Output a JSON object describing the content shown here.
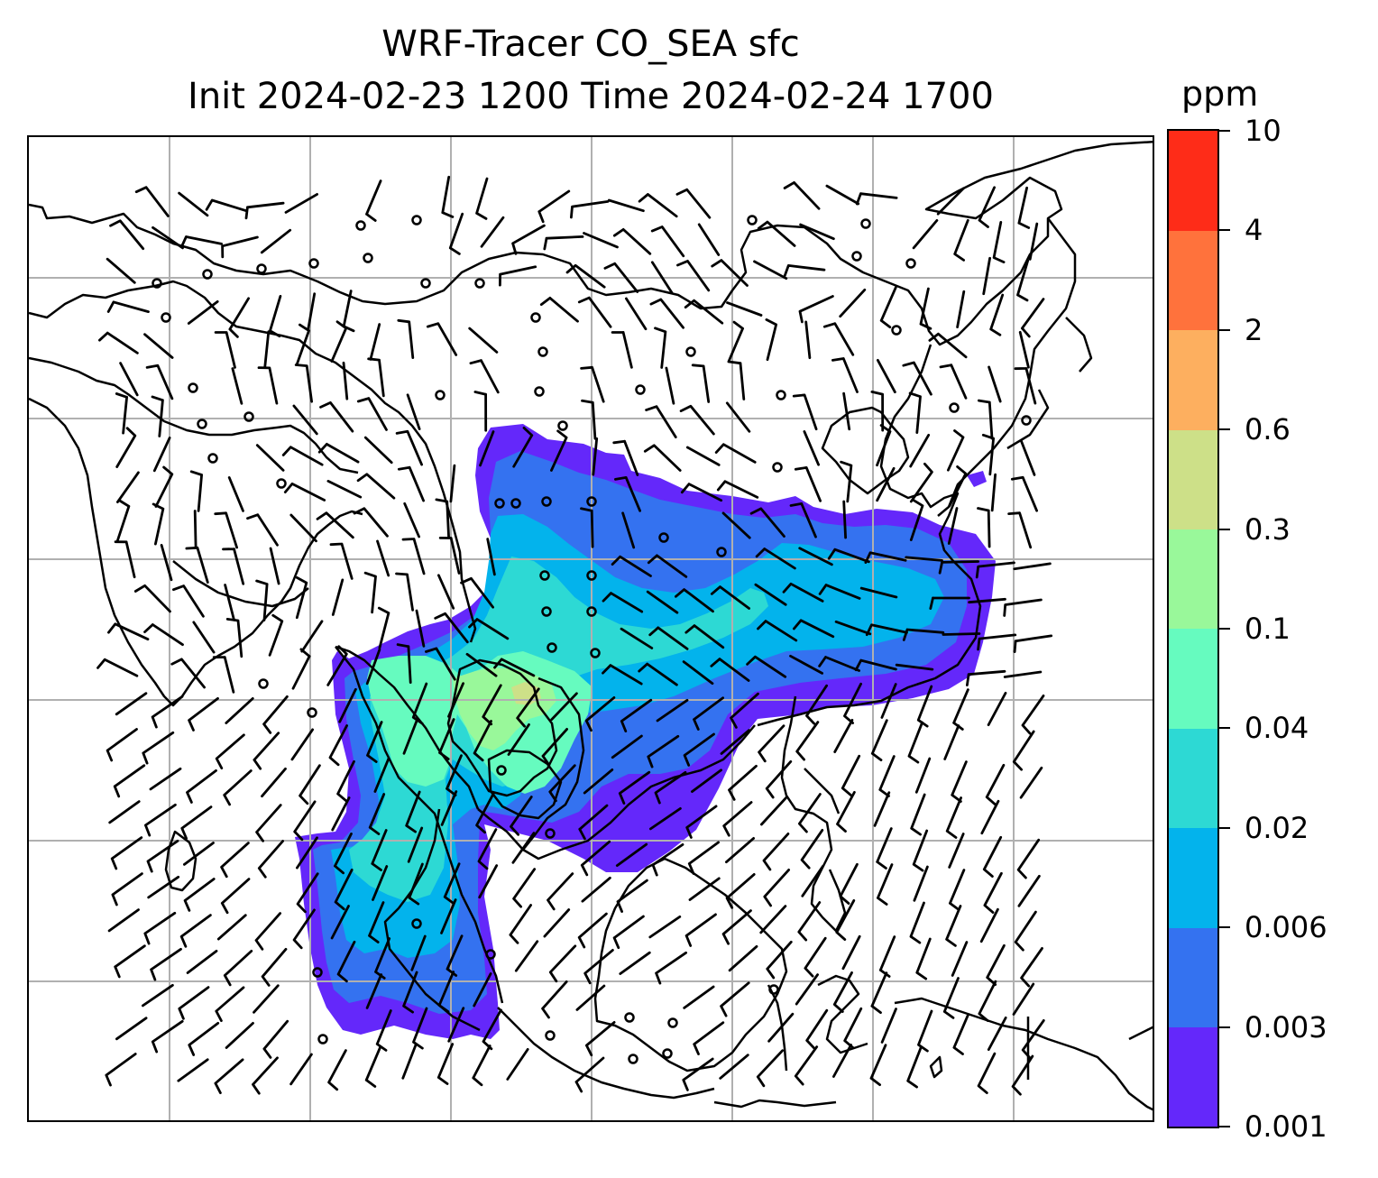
{
  "title": {
    "line1": "WRF-Tracer CO_SEA sfc",
    "line2": "Init 2024-02-23 1200 Time 2024-02-24 1700"
  },
  "colorbar": {
    "unit": "ppm",
    "levels": [
      "0.001",
      "0.003",
      "0.006",
      "0.02",
      "0.04",
      "0.1",
      "0.3",
      "0.6",
      "2",
      "4",
      "10"
    ],
    "colors": [
      "#6428fa",
      "#3472f0",
      "#03b3ec",
      "#2dd9d4",
      "#66fbbf",
      "#99f89a",
      "#cde088",
      "#fdaf5f",
      "#ff723c",
      "#fe2c18"
    ]
  },
  "map": {
    "gridlines": true,
    "coastline_color": "#000000",
    "wind_barbs": true
  }
}
